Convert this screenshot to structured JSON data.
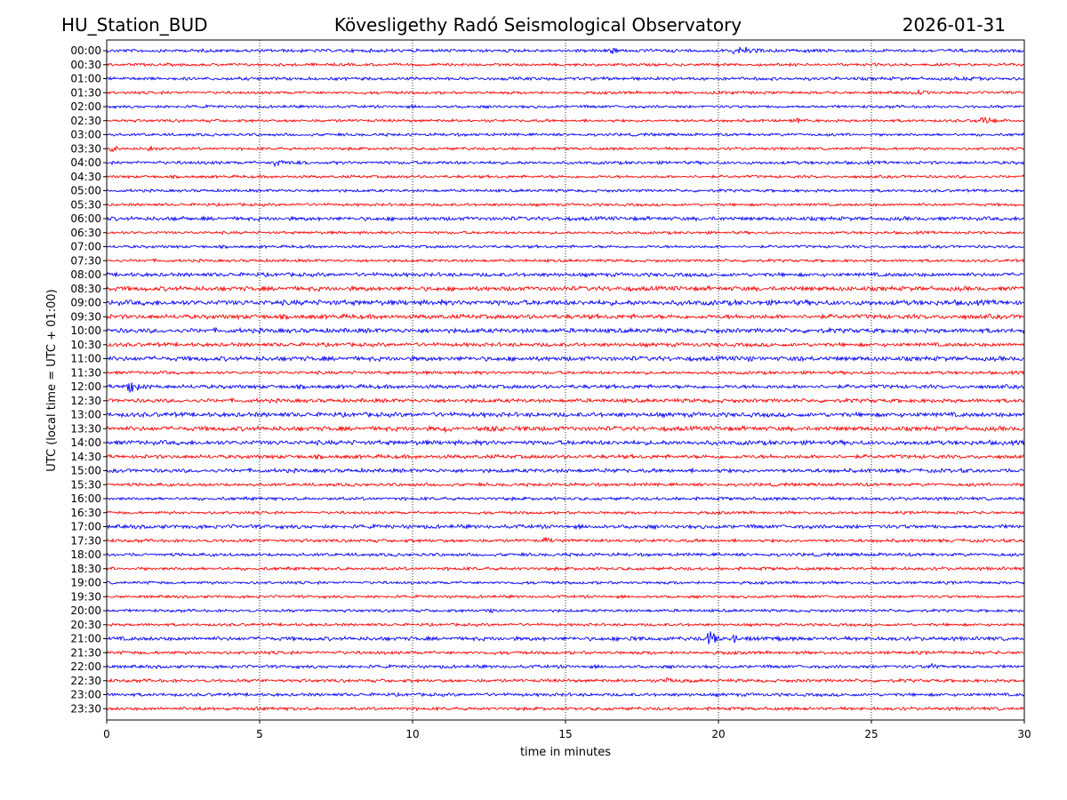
{
  "header": {
    "station": "HU_Station_BUD",
    "observatory": "Kövesligethy Radó Seismological Observatory",
    "date": "2026-01-31"
  },
  "chart_data": {
    "type": "line",
    "title": "Kövesligethy Radó Seismological Observatory",
    "station": "HU_Station_BUD",
    "date": "2026-01-31",
    "xlabel": "time in minutes",
    "ylabel": "UTC (local time = UTC + 01:00)",
    "xlim": [
      0,
      30
    ],
    "xticks": [
      0,
      5,
      10,
      15,
      20,
      25,
      30
    ],
    "grid": "vertical dotted lines at each x tick",
    "colors": [
      "#0000ff",
      "#ff0000"
    ],
    "row_labels": [
      "00:00",
      "00:30",
      "01:00",
      "01:30",
      "02:00",
      "02:30",
      "03:00",
      "03:30",
      "04:00",
      "04:30",
      "05:00",
      "05:30",
      "06:00",
      "06:30",
      "07:00",
      "07:30",
      "08:00",
      "08:30",
      "09:00",
      "09:30",
      "10:00",
      "10:30",
      "11:00",
      "11:30",
      "12:00",
      "12:30",
      "13:00",
      "13:30",
      "14:00",
      "14:30",
      "15:00",
      "15:30",
      "16:00",
      "16:30",
      "17:00",
      "17:30",
      "18:00",
      "18:30",
      "19:00",
      "19:30",
      "20:00",
      "20:30",
      "21:00",
      "21:30",
      "22:00",
      "22:30",
      "23:00",
      "23:30"
    ],
    "base_amplitude": [
      0.25,
      0.22,
      0.25,
      0.22,
      0.22,
      0.22,
      0.22,
      0.22,
      0.25,
      0.22,
      0.22,
      0.22,
      0.3,
      0.22,
      0.22,
      0.22,
      0.3,
      0.35,
      0.4,
      0.35,
      0.35,
      0.3,
      0.35,
      0.25,
      0.3,
      0.3,
      0.35,
      0.35,
      0.35,
      0.3,
      0.3,
      0.25,
      0.25,
      0.22,
      0.3,
      0.25,
      0.25,
      0.25,
      0.22,
      0.22,
      0.22,
      0.22,
      0.3,
      0.25,
      0.25,
      0.25,
      0.25,
      0.25
    ],
    "events": [
      {
        "row": "00:00",
        "minute": 16.5,
        "amplitude": 0.8,
        "duration": 0.8
      },
      {
        "row": "00:00",
        "minute": 20.5,
        "amplitude": 1.0,
        "duration": 2.5
      },
      {
        "row": "01:00",
        "minute": 28.0,
        "amplitude": 0.5,
        "duration": 1.0
      },
      {
        "row": "01:30",
        "minute": 20.0,
        "amplitude": 0.5,
        "duration": 2.0
      },
      {
        "row": "01:30",
        "minute": 26.5,
        "amplitude": 0.7,
        "duration": 1.2
      },
      {
        "row": "02:30",
        "minute": 22.6,
        "amplitude": 1.0,
        "duration": 0.4
      },
      {
        "row": "02:30",
        "minute": 28.5,
        "amplitude": 0.9,
        "duration": 2.0
      },
      {
        "row": "03:30",
        "minute": 0.2,
        "amplitude": 1.0,
        "duration": 0.4
      },
      {
        "row": "03:30",
        "minute": 1.4,
        "amplitude": 0.8,
        "duration": 0.8
      },
      {
        "row": "04:00",
        "minute": 5.5,
        "amplitude": 0.8,
        "duration": 2.0
      },
      {
        "row": "06:00",
        "minute": 2.5,
        "amplitude": 0.6,
        "duration": 0.6
      },
      {
        "row": "11:00",
        "minute": 21.0,
        "amplitude": 0.7,
        "duration": 0.8
      },
      {
        "row": "11:00",
        "minute": 22.7,
        "amplitude": 0.9,
        "duration": 0.6
      },
      {
        "row": "12:00",
        "minute": 0.7,
        "amplitude": 1.6,
        "duration": 1.0
      },
      {
        "row": "13:30",
        "minute": 11.0,
        "amplitude": 0.9,
        "duration": 1.0
      },
      {
        "row": "13:30",
        "minute": 12.5,
        "amplitude": 0.8,
        "duration": 1.5
      },
      {
        "row": "15:00",
        "minute": 16.5,
        "amplitude": 0.8,
        "duration": 0.4
      },
      {
        "row": "17:30",
        "minute": 14.3,
        "amplitude": 0.8,
        "duration": 1.0
      },
      {
        "row": "20:00",
        "minute": 12.5,
        "amplitude": 0.5,
        "duration": 1.5
      },
      {
        "row": "21:00",
        "minute": 19.7,
        "amplitude": 2.0,
        "duration": 0.6
      },
      {
        "row": "21:00",
        "minute": 20.5,
        "amplitude": 1.0,
        "duration": 1.5
      },
      {
        "row": "21:00",
        "minute": 17.0,
        "amplitude": 0.6,
        "duration": 1.5
      },
      {
        "row": "22:00",
        "minute": 27.0,
        "amplitude": 0.7,
        "duration": 1.0
      },
      {
        "row": "22:30",
        "minute": 18.3,
        "amplitude": 0.7,
        "duration": 0.8
      },
      {
        "row": "23:30",
        "minute": 3.0,
        "amplitude": 0.5,
        "duration": 2.0
      }
    ]
  }
}
